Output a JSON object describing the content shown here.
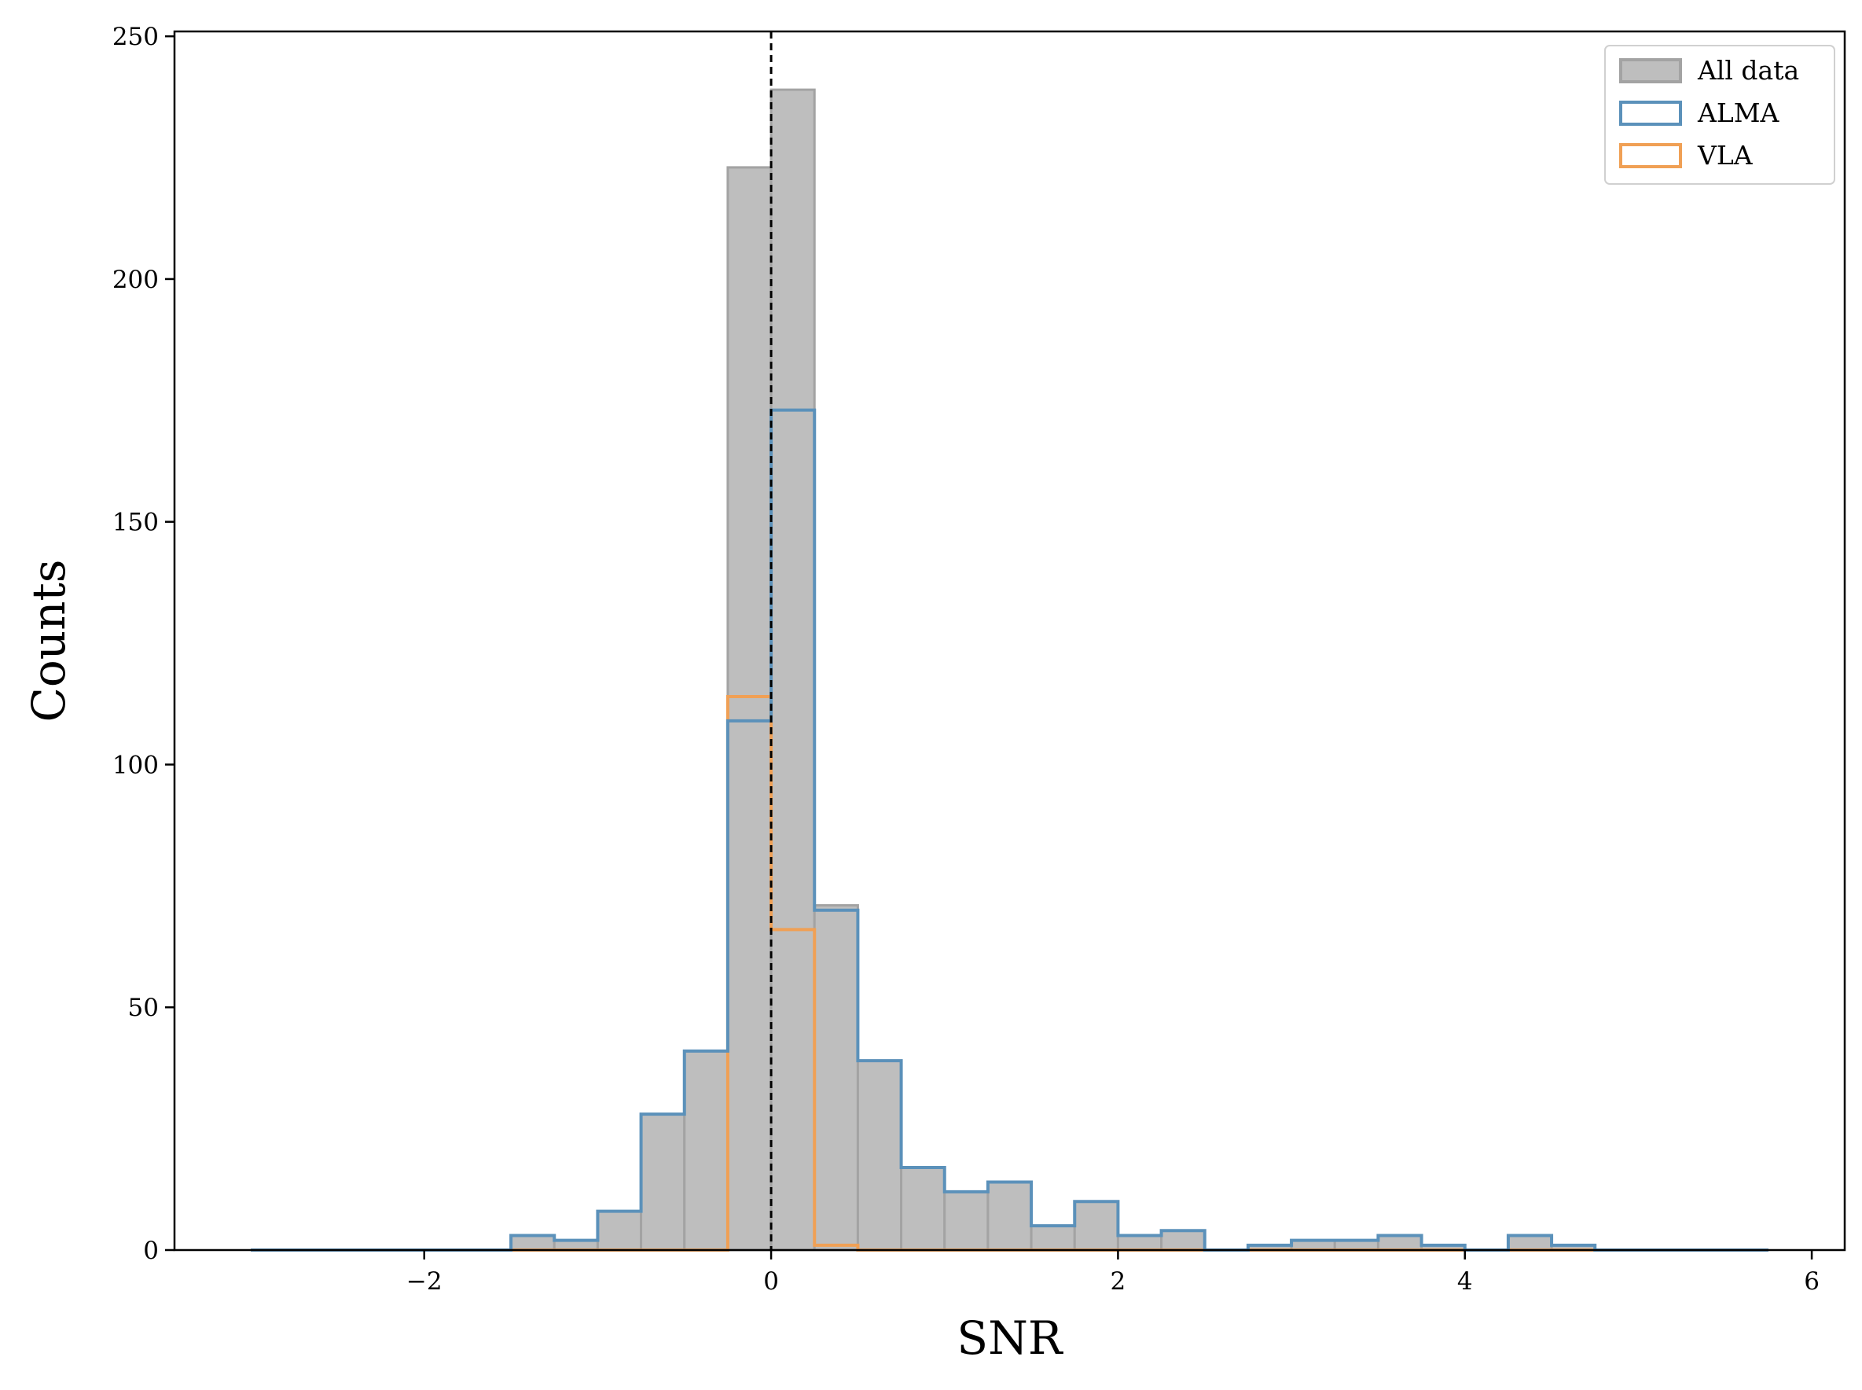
{
  "chart_data": {
    "type": "bar",
    "xlabel": "SNR",
    "ylabel": "Counts",
    "xlim": [
      -3.44,
      6.19
    ],
    "ylim": [
      0,
      251
    ],
    "xticks": [
      -2,
      0,
      2,
      4,
      6
    ],
    "xtick_labels": [
      "−2",
      "0",
      "2",
      "4",
      "6"
    ],
    "yticks": [
      0,
      50,
      100,
      150,
      200,
      250
    ],
    "ytick_labels": [
      "0",
      "50",
      "100",
      "150",
      "200",
      "250"
    ],
    "bin_edges": [
      -3.0,
      -2.75,
      -2.5,
      -2.25,
      -2.0,
      -1.75,
      -1.5,
      -1.25,
      -1.0,
      -0.75,
      -0.5,
      -0.25,
      0.0,
      0.25,
      0.5,
      0.75,
      1.0,
      1.25,
      1.5,
      1.75,
      2.0,
      2.25,
      2.5,
      2.75,
      3.0,
      3.25,
      3.5,
      3.75,
      4.0,
      4.25,
      4.5,
      4.75,
      5.0,
      5.25,
      5.5,
      5.75
    ],
    "vline_x": 0,
    "grid": false,
    "legend_position": "top-right",
    "series": [
      {
        "name": "All data",
        "style": "filled",
        "color": "#bebebe",
        "edge_color": "#a3a3a3",
        "values": [
          0,
          0,
          0,
          0,
          0,
          0,
          3,
          2,
          8,
          28,
          41,
          223,
          239,
          71,
          39,
          17,
          12,
          14,
          5,
          10,
          3,
          4,
          0,
          1,
          2,
          2,
          3,
          1,
          0,
          3,
          1,
          0,
          0,
          0,
          0
        ]
      },
      {
        "name": "ALMA",
        "style": "step",
        "color": "#5b91ba",
        "values": [
          0,
          0,
          0,
          0,
          0,
          0,
          3,
          2,
          8,
          28,
          41,
          109,
          173,
          70,
          39,
          17,
          12,
          14,
          5,
          10,
          3,
          4,
          0,
          1,
          2,
          2,
          3,
          1,
          0,
          3,
          1,
          0,
          0,
          0,
          0
        ]
      },
      {
        "name": "VLA",
        "style": "step",
        "color": "#f0a055",
        "values": [
          0,
          0,
          0,
          0,
          0,
          0,
          0,
          0,
          0,
          0,
          0,
          114,
          66,
          1,
          0,
          0,
          0,
          0,
          0,
          0,
          0,
          0,
          0,
          0,
          0,
          0,
          0,
          0,
          0,
          0,
          0,
          0,
          0,
          0,
          0
        ]
      }
    ]
  }
}
